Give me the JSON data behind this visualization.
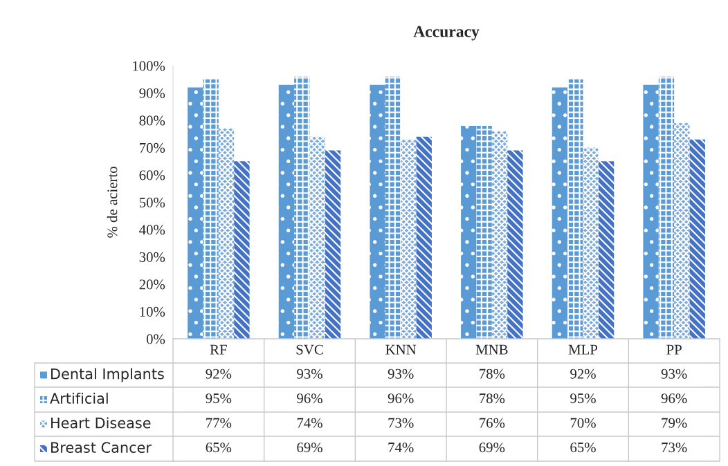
{
  "chart_data": {
    "type": "bar",
    "title": "Accuracy",
    "ylabel": "% de acierto",
    "categories": [
      "RF",
      "SVC",
      "KNN",
      "MNB",
      "MLP",
      "PP"
    ],
    "series": [
      {
        "name": "Dental Implants",
        "color": "#5b9bd5",
        "values": [
          92,
          93,
          93,
          78,
          92,
          93
        ],
        "value_labels": [
          "92%",
          "93%",
          "93%",
          "78%",
          "92%",
          "93%"
        ]
      },
      {
        "name": "Artificial",
        "color": "#5b9bd5",
        "values": [
          95,
          96,
          96,
          78,
          95,
          96
        ],
        "value_labels": [
          "95%",
          "96%",
          "96%",
          "78%",
          "95%",
          "96%"
        ]
      },
      {
        "name": "Heart Disease",
        "color": "#7faadc",
        "values": [
          77,
          74,
          73,
          76,
          70,
          79
        ],
        "value_labels": [
          "77%",
          "74%",
          "73%",
          "76%",
          "70%",
          "79%"
        ]
      },
      {
        "name": "Breast Cancer",
        "color": "#4472c4",
        "values": [
          65,
          69,
          74,
          69,
          65,
          73
        ],
        "value_labels": [
          "65%",
          "69%",
          "74%",
          "69%",
          "65%",
          "73%"
        ]
      }
    ],
    "ylim": [
      0,
      100
    ],
    "yticks": [
      {
        "value": 0,
        "label": "0%"
      },
      {
        "value": 10,
        "label": "10%"
      },
      {
        "value": 20,
        "label": "20%"
      },
      {
        "value": 30,
        "label": "30%"
      },
      {
        "value": 40,
        "label": "40%"
      },
      {
        "value": 50,
        "label": "50%"
      },
      {
        "value": 60,
        "label": "60%"
      },
      {
        "value": 70,
        "label": "70%"
      },
      {
        "value": 80,
        "label": "80%"
      },
      {
        "value": 90,
        "label": "90%"
      },
      {
        "value": 100,
        "label": "100%"
      }
    ],
    "legend": "bottom",
    "grid": false
  }
}
